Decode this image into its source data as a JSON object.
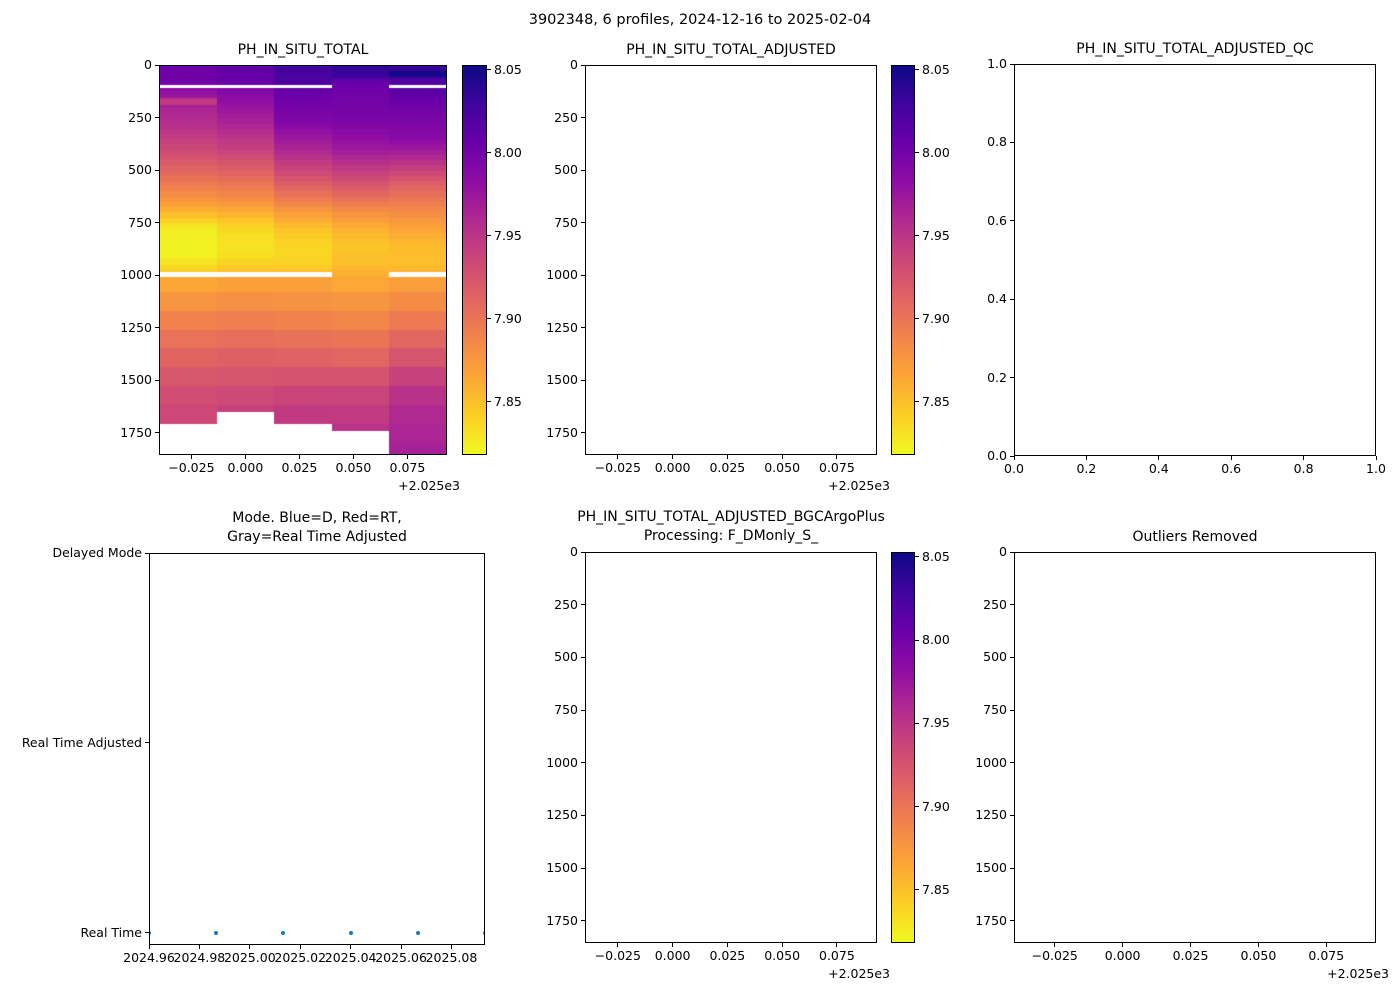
{
  "figure": {
    "title": "3902348, 6 profiles, 2024-12-16 to 2025-02-04"
  },
  "colors": {
    "plasma_reversed_top_to_bottom": [
      "#0d0887",
      "#41049d",
      "#6a00a8",
      "#8f0da4",
      "#b12a90",
      "#cc4778",
      "#e16462",
      "#f2844b",
      "#fca636",
      "#fcce25",
      "#f0f921"
    ],
    "scatter_dot": "#1f77b4",
    "spine": "#000000",
    "background": "#ffffff"
  },
  "chart_data": [
    {
      "id": "ph_in_situ_total",
      "type": "heatmap",
      "title": "PH_IN_SITU_TOTAL",
      "xlabel": "",
      "ylabel": "",
      "xlim": [
        2024.96,
        2025.0933
      ],
      "xticks": [
        2024.975,
        2025.0,
        2025.025,
        2025.05,
        2025.075
      ],
      "xticklabels": [
        "−0.025",
        "0.000",
        "0.025",
        "0.050",
        "0.075"
      ],
      "x_offset_label": "+2.025e3",
      "ylim": [
        0,
        1855
      ],
      "yticks": [
        0,
        250,
        500,
        750,
        1000,
        1250,
        1500,
        1750
      ],
      "yticklabels": [
        "0",
        "250",
        "500",
        "750",
        "1000",
        "1250",
        "1500",
        "1750"
      ],
      "colorbar": {
        "vmin": 7.818,
        "vmax": 8.053,
        "ticks": [
          8.05,
          8.0,
          7.95,
          7.9,
          7.85
        ],
        "ticklabels": [
          "8.05",
          "8.00",
          "7.95",
          "7.90",
          "7.85"
        ]
      },
      "profile_times": [
        2024.96,
        2024.9867,
        2025.0133,
        2025.04,
        2025.0667,
        2025.0933
      ],
      "columns": [
        {
          "x0": 2024.96,
          "x1": 2024.9867,
          "bottom": 1712,
          "gaps": [
            [
              90,
              104
            ],
            [
              985,
              1009
            ]
          ],
          "profile": [
            [
              0,
              8.005
            ],
            [
              85,
              8.0
            ],
            [
              115,
              7.982
            ],
            [
              150,
              7.974
            ],
            [
              158,
              7.946
            ],
            [
              180,
              7.946
            ],
            [
              192,
              7.966
            ],
            [
              300,
              7.952
            ],
            [
              420,
              7.93
            ],
            [
              520,
              7.906
            ],
            [
              620,
              7.882
            ],
            [
              700,
              7.856
            ],
            [
              760,
              7.83
            ],
            [
              800,
              7.823
            ],
            [
              900,
              7.821
            ],
            [
              940,
              7.83
            ],
            [
              985,
              7.842
            ],
            [
              1012,
              7.862
            ],
            [
              1100,
              7.873
            ],
            [
              1250,
              7.895
            ],
            [
              1400,
              7.913
            ],
            [
              1550,
              7.929
            ],
            [
              1712,
              7.937
            ]
          ]
        },
        {
          "x0": 2024.9867,
          "x1": 2025.0133,
          "bottom": 1655,
          "gaps": [
            [
              90,
              104
            ],
            [
              985,
              1009
            ]
          ],
          "profile": [
            [
              0,
              8.012
            ],
            [
              85,
              8.006
            ],
            [
              115,
              7.99
            ],
            [
              250,
              7.968
            ],
            [
              400,
              7.94
            ],
            [
              520,
              7.91
            ],
            [
              620,
              7.886
            ],
            [
              700,
              7.86
            ],
            [
              760,
              7.84
            ],
            [
              820,
              7.831
            ],
            [
              900,
              7.831
            ],
            [
              940,
              7.839
            ],
            [
              985,
              7.849
            ],
            [
              1012,
              7.866
            ],
            [
              1100,
              7.877
            ],
            [
              1250,
              7.898
            ],
            [
              1400,
              7.916
            ],
            [
              1550,
              7.931
            ],
            [
              1655,
              7.941
            ]
          ]
        },
        {
          "x0": 2025.0133,
          "x1": 2025.04,
          "bottom": 1712,
          "gaps": [
            [
              90,
              104
            ],
            [
              985,
              1009
            ]
          ],
          "profile": [
            [
              0,
              8.028
            ],
            [
              85,
              8.022
            ],
            [
              115,
              8.008
            ],
            [
              250,
              7.994
            ],
            [
              400,
              7.962
            ],
            [
              520,
              7.93
            ],
            [
              620,
              7.9
            ],
            [
              700,
              7.872
            ],
            [
              780,
              7.848
            ],
            [
              850,
              7.837
            ],
            [
              930,
              7.837
            ],
            [
              985,
              7.85
            ],
            [
              1012,
              7.867
            ],
            [
              1150,
              7.881
            ],
            [
              1300,
              7.901
            ],
            [
              1450,
              7.921
            ],
            [
              1600,
              7.941
            ],
            [
              1712,
              7.949
            ]
          ]
        },
        {
          "x0": 2025.04,
          "x1": 2025.0667,
          "bottom": 1745,
          "gaps": [],
          "profile": [
            [
              0,
              8.036
            ],
            [
              55,
              8.031
            ],
            [
              65,
              8.012
            ],
            [
              130,
              8.001
            ],
            [
              250,
              7.997
            ],
            [
              400,
              7.972
            ],
            [
              520,
              7.938
            ],
            [
              620,
              7.908
            ],
            [
              700,
              7.88
            ],
            [
              780,
              7.858
            ],
            [
              860,
              7.846
            ],
            [
              950,
              7.852
            ],
            [
              1000,
              7.86
            ],
            [
              1100,
              7.873
            ],
            [
              1250,
              7.892
            ],
            [
              1400,
              7.912
            ],
            [
              1550,
              7.936
            ],
            [
              1745,
              7.952
            ]
          ]
        },
        {
          "x0": 2025.0667,
          "x1": 2025.0933,
          "bottom": 1855,
          "gaps": [
            [
              90,
              104
            ],
            [
              985,
              1009
            ]
          ],
          "profile": [
            [
              0,
              8.031
            ],
            [
              20,
              8.036
            ],
            [
              30,
              8.05
            ],
            [
              50,
              8.048
            ],
            [
              60,
              8.022
            ],
            [
              88,
              8.018
            ],
            [
              115,
              8.015
            ],
            [
              200,
              8.002
            ],
            [
              350,
              7.986
            ],
            [
              450,
              7.956
            ],
            [
              550,
              7.92
            ],
            [
              650,
              7.895
            ],
            [
              750,
              7.872
            ],
            [
              850,
              7.853
            ],
            [
              930,
              7.85
            ],
            [
              985,
              7.857
            ],
            [
              1012,
              7.868
            ],
            [
              1100,
              7.879
            ],
            [
              1250,
              7.901
            ],
            [
              1400,
              7.926
            ],
            [
              1550,
              7.951
            ],
            [
              1700,
              7.962
            ],
            [
              1855,
              7.966
            ]
          ]
        }
      ]
    },
    {
      "id": "ph_in_situ_total_adjusted",
      "type": "heatmap",
      "title": "PH_IN_SITU_TOTAL_ADJUSTED",
      "xlim": [
        2024.96,
        2025.0933
      ],
      "xticks": [
        2024.975,
        2025.0,
        2025.025,
        2025.05,
        2025.075
      ],
      "xticklabels": [
        "−0.025",
        "0.000",
        "0.025",
        "0.050",
        "0.075"
      ],
      "x_offset_label": "+2.025e3",
      "ylim": [
        0,
        1855
      ],
      "yticks": [
        0,
        250,
        500,
        750,
        1000,
        1250,
        1500,
        1750
      ],
      "yticklabels": [
        "0",
        "250",
        "500",
        "750",
        "1000",
        "1250",
        "1500",
        "1750"
      ],
      "colorbar": {
        "vmin": 7.818,
        "vmax": 8.053,
        "ticks": [
          8.05,
          8.0,
          7.95,
          7.9,
          7.85
        ],
        "ticklabels": [
          "8.05",
          "8.00",
          "7.95",
          "7.90",
          "7.85"
        ]
      },
      "columns": []
    },
    {
      "id": "ph_in_situ_total_adjusted_qc",
      "type": "empty",
      "title": "PH_IN_SITU_TOTAL_ADJUSTED_QC",
      "xlim": [
        0,
        1
      ],
      "xticks": [
        0,
        0.2,
        0.4,
        0.6,
        0.8,
        1.0
      ],
      "xticklabels": [
        "0.0",
        "0.2",
        "0.4",
        "0.6",
        "0.8",
        "1.0"
      ],
      "ylim": [
        0,
        1
      ],
      "yticks": [
        0,
        0.2,
        0.4,
        0.6,
        0.8,
        1.0
      ],
      "yticklabels": [
        "0.0",
        "0.2",
        "0.4",
        "0.6",
        "0.8",
        "1.0"
      ]
    },
    {
      "id": "mode",
      "type": "scatter",
      "title": "Mode. Blue=D, Red=RT,\nGray=Real Time Adjusted",
      "xlim": [
        2024.96,
        2025.0933
      ],
      "xticks": [
        2024.96,
        2024.98,
        2025.0,
        2025.02,
        2025.04,
        2025.06,
        2025.08
      ],
      "xticklabels": [
        "2024.96",
        "2024.98",
        "2025.00",
        "2025.02",
        "2025.04",
        "2025.06",
        "2025.08"
      ],
      "yticks": [
        2,
        1,
        0
      ],
      "yticklabels": [
        "Delayed Mode",
        "Real Time Adjusted",
        "Real Time"
      ],
      "points": [
        {
          "x": 2024.96,
          "mode": "Real Time"
        },
        {
          "x": 2024.9867,
          "mode": "Real Time"
        },
        {
          "x": 2025.0133,
          "mode": "Real Time"
        },
        {
          "x": 2025.04,
          "mode": "Real Time"
        },
        {
          "x": 2025.0667,
          "mode": "Real Time"
        },
        {
          "x": 2025.0933,
          "mode": "Real Time"
        }
      ]
    },
    {
      "id": "ph_in_situ_total_adjusted_bgcargoplus",
      "type": "heatmap",
      "title": "PH_IN_SITU_TOTAL_ADJUSTED_BGCArgoPlus\nProcessing: F_DMonly_S_",
      "xlim": [
        2024.96,
        2025.0933
      ],
      "xticks": [
        2024.975,
        2025.0,
        2025.025,
        2025.05,
        2025.075
      ],
      "xticklabels": [
        "−0.025",
        "0.000",
        "0.025",
        "0.050",
        "0.075"
      ],
      "x_offset_label": "+2.025e3",
      "ylim": [
        0,
        1855
      ],
      "yticks": [
        0,
        250,
        500,
        750,
        1000,
        1250,
        1500,
        1750
      ],
      "yticklabels": [
        "0",
        "250",
        "500",
        "750",
        "1000",
        "1250",
        "1500",
        "1750"
      ],
      "colorbar": {
        "vmin": 7.818,
        "vmax": 8.053,
        "ticks": [
          8.05,
          8.0,
          7.95,
          7.9,
          7.85
        ],
        "ticklabels": [
          "8.05",
          "8.00",
          "7.95",
          "7.90",
          "7.85"
        ]
      },
      "columns": []
    },
    {
      "id": "outliers_removed",
      "type": "empty",
      "title": "Outliers Removed",
      "xlim": [
        2024.96,
        2025.0933
      ],
      "xticks": [
        2024.975,
        2025.0,
        2025.025,
        2025.05,
        2025.075
      ],
      "xticklabels": [
        "−0.025",
        "0.000",
        "0.025",
        "0.050",
        "0.075"
      ],
      "x_offset_label": "+2.025e3",
      "ylim": [
        0,
        1855
      ],
      "yticks": [
        0,
        250,
        500,
        750,
        1000,
        1250,
        1500,
        1750
      ],
      "yticklabels": [
        "0",
        "250",
        "500",
        "750",
        "1000",
        "1250",
        "1500",
        "1750"
      ]
    }
  ]
}
